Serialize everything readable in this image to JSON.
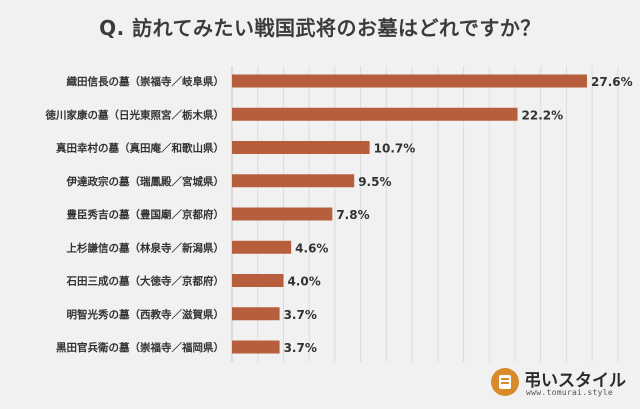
{
  "chart_data": {
    "type": "bar",
    "orientation": "horizontal",
    "title": "Q. 訪れてみたい戦国武将のお墓はどれですか？",
    "categories": [
      "織田信長の墓（崇福寺／岐阜県）",
      "徳川家康の墓（日光東照宮／栃木県）",
      "真田幸村の墓（真田庵／和歌山県）",
      "伊達政宗の墓（瑞鳳殿／宮城県）",
      "豊臣秀吉の墓（豊国廟／京都府）",
      "上杉謙信の墓（林泉寺／新潟県）",
      "石田三成の墓（大徳寺／京都府）",
      "明智光秀の墓（西教寺／滋賀県）",
      "黒田官兵衛の墓（崇福寺／福岡県）"
    ],
    "values": [
      27.6,
      22.2,
      10.7,
      9.5,
      7.8,
      4.6,
      4.0,
      3.7,
      3.7
    ],
    "value_labels": [
      "27.6%",
      "22.2%",
      "10.7%",
      "9.5%",
      "7.8%",
      "4.6%",
      "4.0%",
      "3.7%",
      "3.7%"
    ],
    "xlim": [
      0,
      30
    ],
    "grid": true,
    "bar_color": "#b75f3c",
    "xlabel": "",
    "ylabel": ""
  },
  "brand": {
    "name": "弔いスタイル",
    "url": "www.tomurai.style",
    "logo_color": "#d98a2b"
  }
}
